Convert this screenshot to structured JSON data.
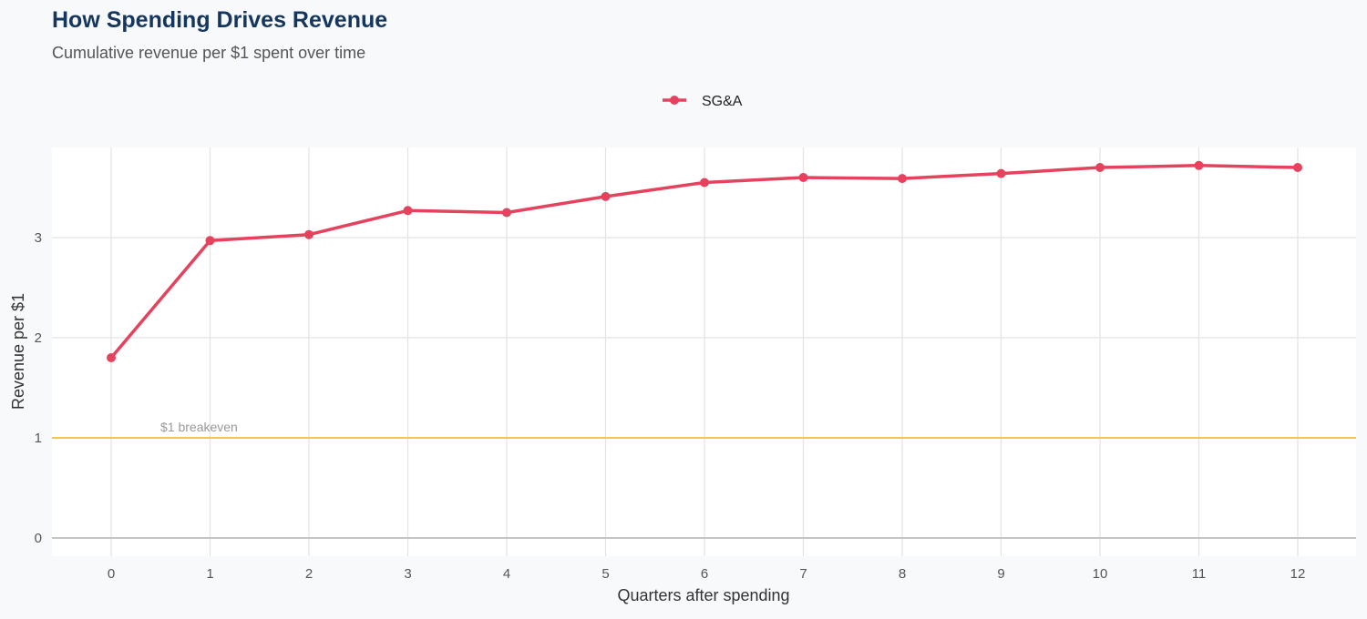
{
  "chart_data": {
    "type": "line",
    "title": "How Spending Drives Revenue",
    "subtitle": "Cumulative revenue per $1 spent over time",
    "xlabel": "Quarters after spending",
    "ylabel": "Revenue per $1",
    "x": [
      0,
      1,
      2,
      3,
      4,
      5,
      6,
      7,
      8,
      9,
      10,
      11,
      12
    ],
    "xticks": [
      "0",
      "1",
      "2",
      "3",
      "4",
      "5",
      "6",
      "7",
      "8",
      "9",
      "10",
      "11",
      "12"
    ],
    "yticks": [
      "0",
      "1",
      "2",
      "3"
    ],
    "ylim": [
      0,
      3.9
    ],
    "xlim": [
      -0.6,
      12.6
    ],
    "grid": true,
    "legend_position": "top-center",
    "series": [
      {
        "name": "SG&A",
        "color": "#e5425e",
        "values": [
          1.8,
          2.97,
          3.03,
          3.27,
          3.25,
          3.41,
          3.55,
          3.6,
          3.59,
          3.64,
          3.7,
          3.72,
          3.7
        ]
      }
    ],
    "reference_line": {
      "y": 1,
      "label": "$1 breakeven",
      "color": "#f5c451"
    }
  }
}
